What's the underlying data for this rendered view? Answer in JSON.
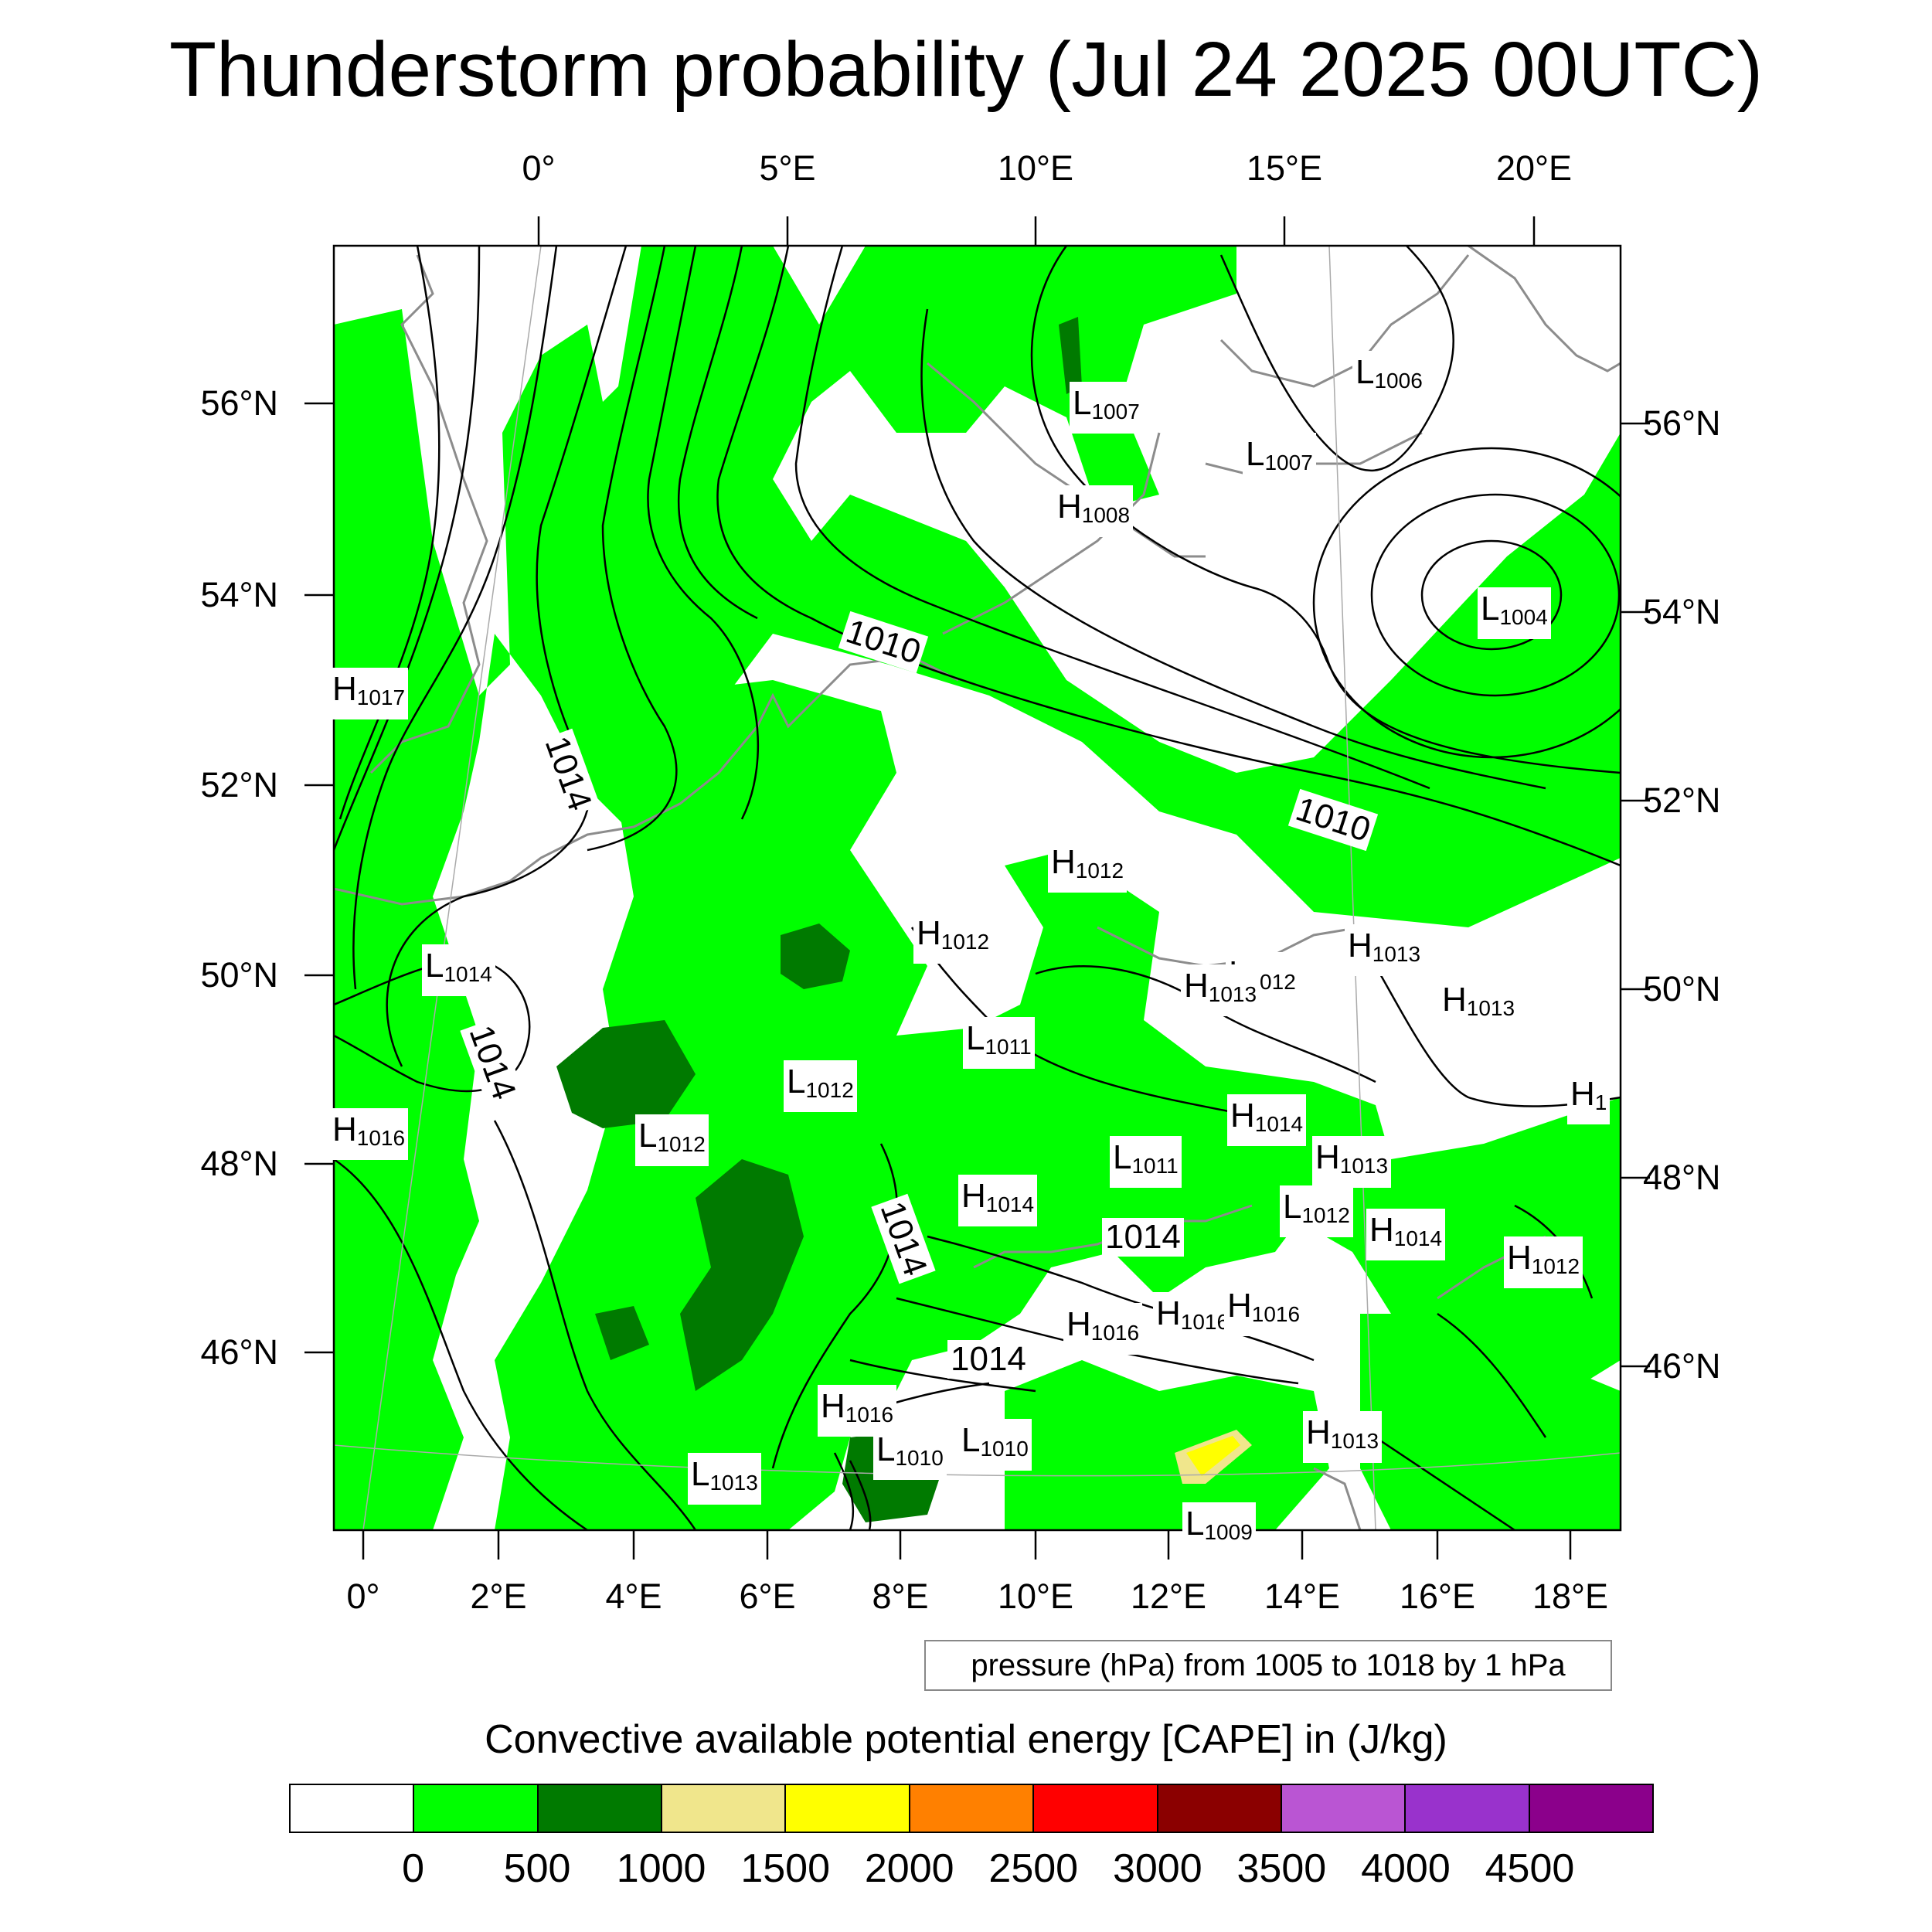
{
  "title": "Thunderstorm probability (Jul 24 2025 00UTC)",
  "top_lon_labels": [
    "0°",
    "5°E",
    "10°E",
    "15°E",
    "20°E"
  ],
  "bottom_lon_labels": [
    "0°",
    "2°E",
    "4°E",
    "6°E",
    "8°E",
    "10°E",
    "12°E",
    "14°E",
    "16°E",
    "18°E"
  ],
  "left_lat_labels": [
    "56°N",
    "54°N",
    "52°N",
    "50°N",
    "48°N",
    "46°N"
  ],
  "right_lat_labels": [
    "56°N",
    "54°N",
    "52°N",
    "50°N",
    "48°N",
    "46°N"
  ],
  "pressure_labels": [
    {
      "type": "L",
      "value": "1007"
    },
    {
      "type": "L",
      "value": "1006"
    },
    {
      "type": "L",
      "value": "1007"
    },
    {
      "type": "H",
      "value": "1008"
    },
    {
      "type": "L",
      "value": "1004"
    },
    {
      "type": "H",
      "value": "1017"
    },
    {
      "type": "H",
      "value": "1012"
    },
    {
      "type": "H",
      "value": "1012"
    },
    {
      "type": "H",
      "value": "1013"
    },
    {
      "type": "L",
      "value": "1012"
    },
    {
      "type": "H",
      "value": "1013"
    },
    {
      "type": "H",
      "value": "1013"
    },
    {
      "type": "L",
      "value": "1014"
    },
    {
      "type": "L",
      "value": "1011"
    },
    {
      "type": "L",
      "value": "1012"
    },
    {
      "type": "L",
      "value": "1012"
    },
    {
      "type": "H",
      "value": "1016"
    },
    {
      "type": "H",
      "value": "1014"
    },
    {
      "type": "H",
      "value": "1013"
    },
    {
      "type": "L",
      "value": "1011"
    },
    {
      "type": "H",
      "value": "1014"
    },
    {
      "type": "L",
      "value": "1012"
    },
    {
      "type": "H",
      "value": "1014"
    },
    {
      "type": "H",
      "value": "1012"
    },
    {
      "type": "H",
      "value": "1016"
    },
    {
      "type": "H",
      "value": "1016"
    },
    {
      "type": "H",
      "value": "1016"
    },
    {
      "type": "H",
      "value": "1016"
    },
    {
      "type": "H",
      "value": "1013"
    },
    {
      "type": "L",
      "value": "1010"
    },
    {
      "type": "L",
      "value": "1010"
    },
    {
      "type": "L",
      "value": "1013"
    },
    {
      "type": "L",
      "value": "1009"
    },
    {
      "type": "H",
      "value": "1"
    }
  ],
  "contour_labels": [
    "1010",
    "1010",
    "1014",
    "1014",
    "1014",
    "1014",
    "1014"
  ],
  "contour_info": "pressure (hPa) from 1005 to 1018 by 1 hPa",
  "colorbar": {
    "title": "Convective available potential energy [CAPE] in (J/kg)",
    "colors": [
      "#ffffff",
      "#00ff00",
      "#007a00",
      "#f0e68c",
      "#ffff00",
      "#ff8000",
      "#ff0000",
      "#8b0000",
      "#ba55d3",
      "#9932cc",
      "#8b008b"
    ],
    "ticks": [
      "0",
      "500",
      "1000",
      "1500",
      "2000",
      "2500",
      "3000",
      "3500",
      "4000",
      "4500"
    ]
  }
}
